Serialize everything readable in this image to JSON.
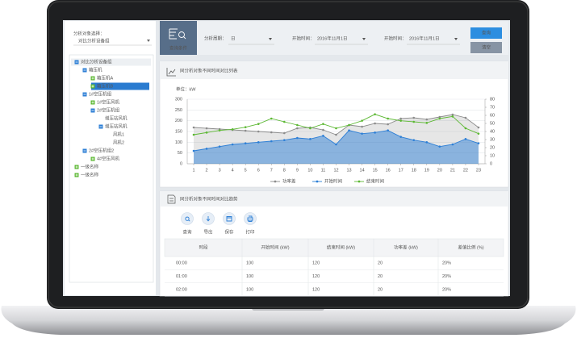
{
  "sidebar": {
    "label": "分析对象选择：",
    "selected": "对比分析设备组",
    "tree": [
      {
        "label": "对比分析设备组",
        "children": [
          {
            "label": "箱压机",
            "children": [
              {
                "label": "箱压机A"
              },
              {
                "label": "箱压机B",
                "selected": true
              }
            ]
          },
          {
            "label": "1#空压机组",
            "children": [
              {
                "label": "1#空压风机"
              },
              {
                "label": "2#空压机组",
                "children": [
                  {
                    "label": "增压站风机"
                  },
                  {
                    "label": "增压站风机",
                    "children": [
                      {
                        "label": "风机1"
                      },
                      {
                        "label": "风机2"
                      }
                    ]
                  }
                ]
              }
            ]
          },
          {
            "label": "2#空压机组2",
            "children": [
              {
                "label": "4#空压风机"
              }
            ]
          }
        ]
      },
      {
        "label": "一级名称"
      },
      {
        "label": "一级名称"
      }
    ]
  },
  "query": {
    "title": "查询条件",
    "period_label": "分析周期：",
    "period": "日",
    "start_label": "开始时间：",
    "start": "2016年11月1日",
    "end_label": "开始时间：",
    "end": "2016年11月1日",
    "buttons": [
      "查询",
      "清空"
    ]
  },
  "chart_data": {
    "type": "line",
    "title": "同分析对象不同时间对比列表",
    "ylabel": "单位：kW",
    "x": [
      1,
      2,
      3,
      4,
      5,
      6,
      7,
      8,
      9,
      10,
      11,
      12,
      13,
      14,
      15,
      16,
      17,
      18,
      19,
      20,
      21,
      22,
      23
    ],
    "xlim": [
      0.5,
      23.5
    ],
    "xticks": [
      1,
      2,
      3,
      4,
      5,
      6,
      7,
      8,
      9,
      10,
      11,
      12,
      13,
      14,
      15,
      16,
      17,
      18,
      19,
      20,
      21,
      22,
      23
    ],
    "ylim": [
      0,
      300
    ],
    "yticks": [
      0,
      50,
      100,
      150,
      200,
      250,
      300
    ],
    "y2lim": [
      0,
      80
    ],
    "y2ticks": [
      0,
      10,
      20,
      30,
      40,
      50,
      60,
      70,
      80
    ],
    "grid": true,
    "series": [
      {
        "name": "功率差",
        "color": "#8c8c8c",
        "axis": "y2",
        "area": true,
        "values": [
          45,
          44,
          43,
          42,
          41,
          40,
          39,
          38,
          44,
          45,
          42,
          36,
          48,
          46,
          50,
          49,
          56,
          57,
          55,
          58,
          61,
          57,
          45
        ]
      },
      {
        "name": "开始时间",
        "color": "#2d7fd6",
        "area": true,
        "values": [
          60,
          70,
          80,
          90,
          95,
          100,
          105,
          110,
          120,
          115,
          130,
          90,
          155,
          140,
          145,
          155,
          125,
          110,
          100,
          80,
          90,
          115,
          95
        ]
      },
      {
        "name": "结束时间",
        "color": "#5cb833",
        "values": [
          135,
          145,
          155,
          160,
          170,
          185,
          210,
          195,
          180,
          165,
          185,
          165,
          180,
          200,
          230,
          210,
          200,
          195,
          190,
          210,
          220,
          165,
          140
        ]
      }
    ]
  },
  "trend": {
    "title": "同分析对象不同时间对比趋势",
    "tools": [
      "查询",
      "导出",
      "保存",
      "打印"
    ],
    "table": {
      "columns": [
        "时段",
        "开始时间 (kW)",
        "结束时间 (kW)",
        "功率差 (kW)",
        "差值比例 (%)"
      ],
      "rows": [
        [
          "00:00",
          100,
          120,
          20,
          "20%"
        ],
        [
          "01:00",
          100,
          120,
          20,
          "20%"
        ],
        [
          "02:00",
          100,
          120,
          20,
          "20%"
        ]
      ]
    }
  }
}
